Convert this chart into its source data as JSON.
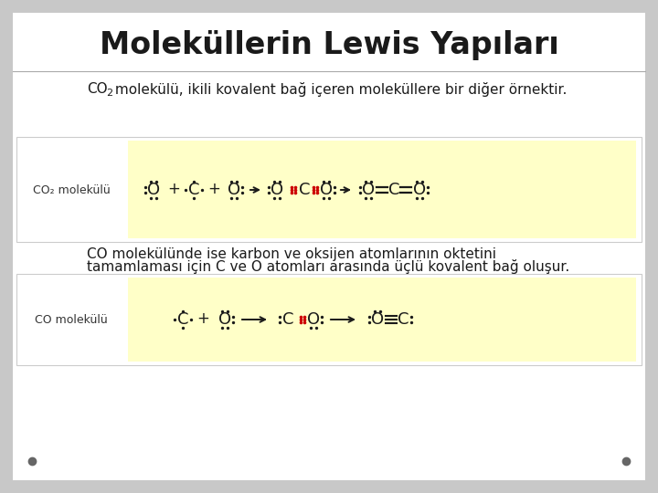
{
  "title": "Moleküllerin Lewis Yapıları",
  "title_color": "#1a1a1a",
  "bg_color": "#c8c8c8",
  "slide_bg": "#ffffff",
  "text1_pre": "CO",
  "text1_sub": "2",
  "text1_post": " molekülü, ikili kovalent bağ içeren moleküllere bir diğer örnektir.",
  "text2_line1": "CO molekülünde ise karbon ve oksijen atomlarının oktetini",
  "text2_line2": "tamamlaması için C ve O atomları arasında üçlü kovalent bağ oluşur.",
  "box1_label": "CO₂ molekülü",
  "box2_label": "CO molekülü",
  "yellow_bg": "#ffffc8",
  "dot_color": "#1a1a1a",
  "red_dot": "#cc0000",
  "bullet_color": "#666666",
  "footer_bullet_size": 6
}
